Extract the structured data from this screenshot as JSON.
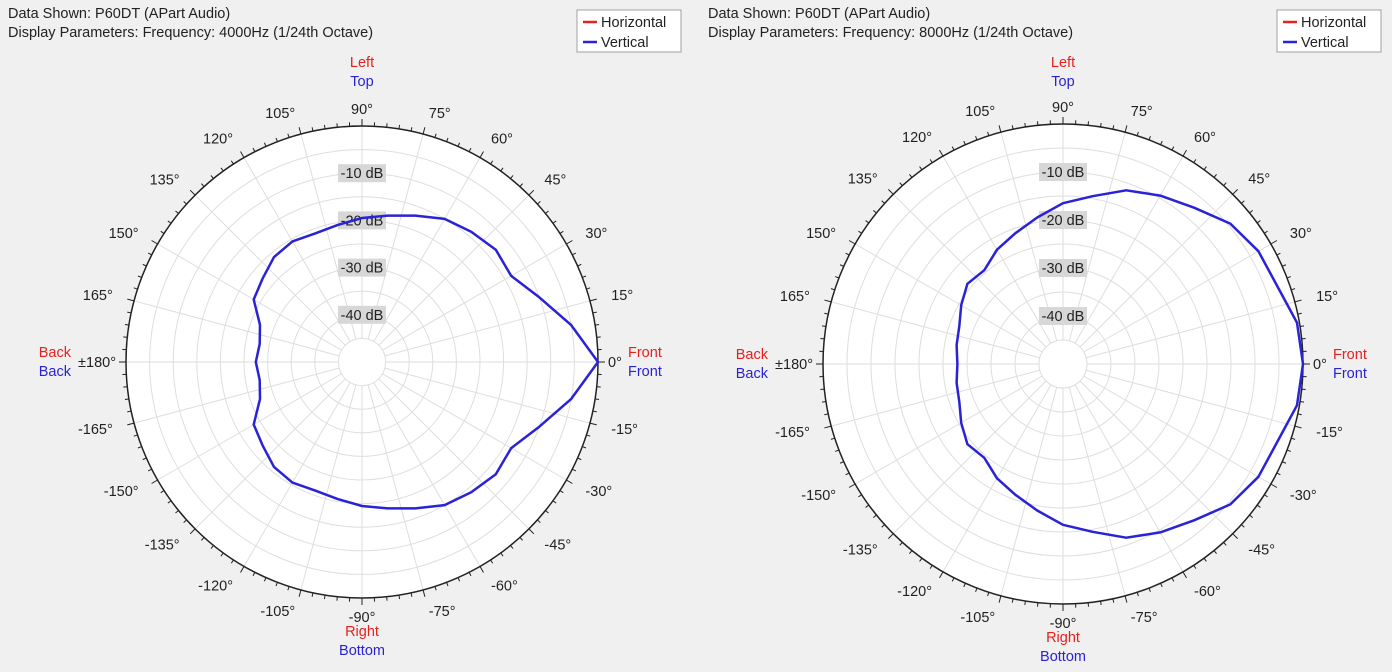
{
  "colors": {
    "horizontal": "#e8201e",
    "vertical": "#2a22d6",
    "grid": "#dedede",
    "axis": "#222222",
    "text": "#222222",
    "background": "#f0f0f0",
    "plot_bg": "#ffffff",
    "db_label_bg": "#d7d7d7"
  },
  "chart_data": [
    {
      "type": "polar",
      "title_lines": [
        "Data Shown:    P60DT (APart Audio)",
        "Display Parameters:    Frequency: 4000Hz (1/24th Octave)"
      ],
      "legend": [
        {
          "name": "Horizontal",
          "color": "#e8201e"
        },
        {
          "name": "Vertical",
          "color": "#2a22d6"
        }
      ],
      "legend_position": "top-right",
      "rlim": [
        -50,
        0
      ],
      "radial_ticks": [
        -10,
        -20,
        -30,
        -40
      ],
      "radial_tick_labels": [
        "-10 dB",
        "-20 dB",
        "-30 dB",
        "-40 dB"
      ],
      "angle_ticks": [
        0,
        15,
        30,
        45,
        60,
        75,
        90,
        105,
        120,
        135,
        150,
        165,
        180,
        -165,
        -150,
        -135,
        -120,
        -105,
        -90,
        -75,
        -60,
        -45,
        -30,
        -15
      ],
      "angle_tick_labels": [
        "0°",
        "15°",
        "30°",
        "45°",
        "60°",
        "75°",
        "90°",
        "105°",
        "120°",
        "135°",
        "150°",
        "165°",
        "±180°",
        "-165°",
        "-150°",
        "-135°",
        "-120°",
        "-105°",
        "-90°",
        "-75°",
        "-60°",
        "-45°",
        "-30°",
        "-15°"
      ],
      "direction_labels": {
        "front": [
          "Front",
          "Front"
        ],
        "back": [
          "Back",
          "Back"
        ],
        "top": [
          "Left",
          "Top"
        ],
        "bottom": [
          "Right",
          "Bottom"
        ]
      },
      "series": [
        {
          "name": "Vertical",
          "angles": [
            0,
            10,
            20,
            30,
            40,
            50,
            60,
            70,
            80,
            90,
            100,
            110,
            120,
            130,
            140,
            150,
            160,
            170,
            180,
            190,
            200,
            210,
            220,
            230,
            240,
            250,
            260,
            270,
            280,
            290,
            300,
            310,
            320,
            330,
            340,
            350
          ],
          "values": [
            0,
            -5,
            -10,
            -13.5,
            -13,
            -14,
            -15,
            -17,
            -18.5,
            -19.5,
            -20.5,
            -21,
            -20.5,
            -21,
            -22.5,
            -23.5,
            -27,
            -28,
            -27.5,
            -28,
            -27,
            -23.5,
            -22.5,
            -21,
            -20.5,
            -21,
            -20.5,
            -19.5,
            -18.5,
            -17,
            -15,
            -14,
            -13,
            -13.5,
            -10,
            -5
          ]
        }
      ]
    },
    {
      "type": "polar",
      "title_lines": [
        "Data Shown:    P60DT (APart Audio)",
        "Display Parameters:    Frequency: 8000Hz (1/24th Octave)"
      ],
      "legend": [
        {
          "name": "Horizontal",
          "color": "#e8201e"
        },
        {
          "name": "Vertical",
          "color": "#2a22d6"
        }
      ],
      "legend_position": "top-right",
      "rlim": [
        -50,
        0
      ],
      "radial_ticks": [
        -10,
        -20,
        -30,
        -40
      ],
      "radial_tick_labels": [
        "-10 dB",
        "-20 dB",
        "-30 dB",
        "-40 dB"
      ],
      "angle_ticks": [
        0,
        15,
        30,
        45,
        60,
        75,
        90,
        105,
        120,
        135,
        150,
        165,
        180,
        -165,
        -150,
        -135,
        -120,
        -105,
        -90,
        -75,
        -60,
        -45,
        -30,
        -15
      ],
      "angle_tick_labels": [
        "0°",
        "15°",
        "30°",
        "45°",
        "60°",
        "75°",
        "90°",
        "105°",
        "120°",
        "135°",
        "150°",
        "165°",
        "±180°",
        "-165°",
        "-150°",
        "-135°",
        "-120°",
        "-105°",
        "-90°",
        "-75°",
        "-60°",
        "-45°",
        "-30°",
        "-15°"
      ],
      "direction_labels": {
        "front": [
          "Front",
          "Front"
        ],
        "back": [
          "Back",
          "Back"
        ],
        "top": [
          "Left",
          "Top"
        ],
        "bottom": [
          "Right",
          "Bottom"
        ]
      },
      "series": [
        {
          "name": "Vertical",
          "angles": [
            0,
            10,
            20,
            30,
            40,
            50,
            60,
            70,
            80,
            90,
            100,
            110,
            120,
            130,
            140,
            150,
            160,
            170,
            180,
            190,
            200,
            210,
            220,
            230,
            240,
            250,
            260,
            270,
            280,
            290,
            300,
            310,
            320,
            330,
            340,
            350
          ],
          "values": [
            0,
            -0.5,
            -2.5,
            -3,
            -4.5,
            -7.5,
            -9.5,
            -11.5,
            -14.5,
            -16.5,
            -19,
            -21,
            -22.5,
            -24.5,
            -24,
            -25.5,
            -27,
            -27.5,
            -28,
            -27.5,
            -27,
            -25.5,
            -24,
            -24.5,
            -22.5,
            -21,
            -19,
            -16.5,
            -14.5,
            -11.5,
            -9.5,
            -7.5,
            -4.5,
            -3,
            -2.5,
            -0.5
          ]
        }
      ]
    }
  ]
}
